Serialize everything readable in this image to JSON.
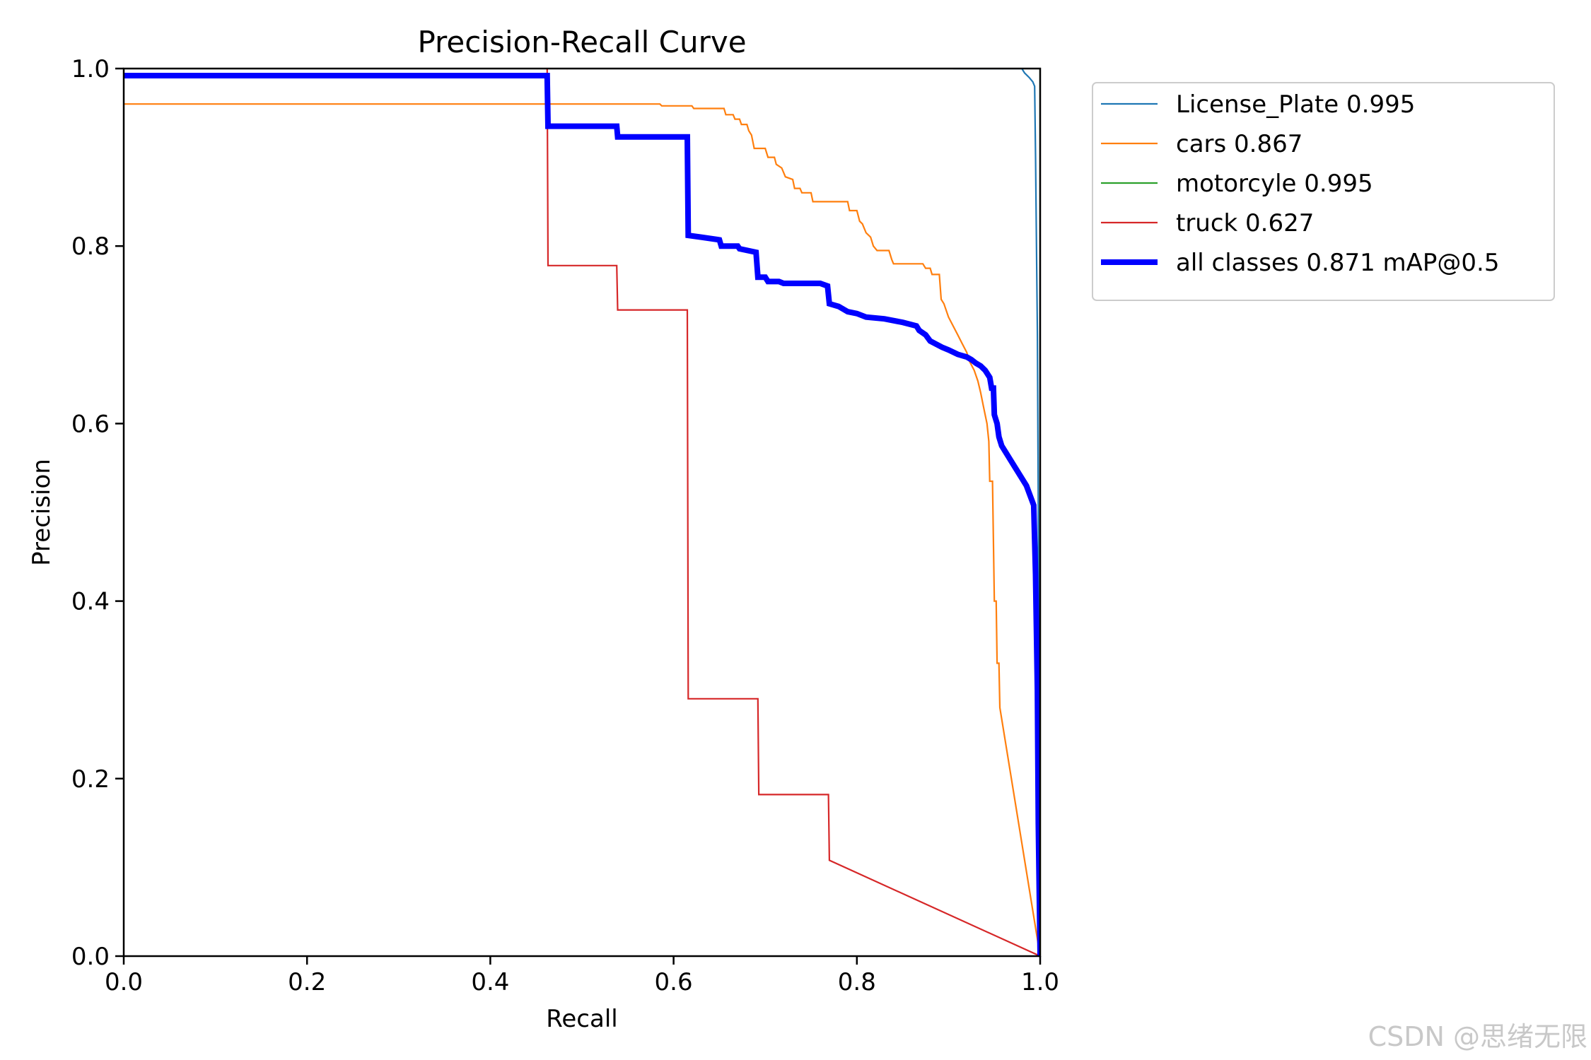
{
  "chart_data": {
    "type": "line",
    "title": "Precision-Recall Curve",
    "xlabel": "Recall",
    "ylabel": "Precision",
    "xlim": [
      0.0,
      1.0
    ],
    "ylim": [
      0.0,
      1.0
    ],
    "xticks": [
      "0.0",
      "0.2",
      "0.4",
      "0.6",
      "0.8",
      "1.0"
    ],
    "yticks": [
      "0.0",
      "0.2",
      "0.4",
      "0.6",
      "0.8",
      "1.0"
    ],
    "legend_position": "outside-top-right",
    "series": [
      {
        "name": "License_Plate",
        "label": "License_Plate 0.995",
        "color": "#1f77b4",
        "width": "thin",
        "points": [
          [
            0.905,
            1.0
          ],
          [
            0.98,
            1.0
          ],
          [
            0.983,
            0.995
          ],
          [
            0.988,
            0.99
          ],
          [
            0.992,
            0.985
          ],
          [
            0.994,
            0.98
          ],
          [
            0.995,
            0.9
          ],
          [
            0.997,
            0.7
          ],
          [
            0.998,
            0.5
          ],
          [
            1.0,
            0.0
          ]
        ]
      },
      {
        "name": "cars",
        "label": "cars 0.867",
        "color": "#ff7f0e",
        "width": "thin",
        "points": [
          [
            0.0,
            0.96
          ],
          [
            0.585,
            0.96
          ],
          [
            0.587,
            0.958
          ],
          [
            0.62,
            0.958
          ],
          [
            0.622,
            0.955
          ],
          [
            0.655,
            0.955
          ],
          [
            0.657,
            0.948
          ],
          [
            0.665,
            0.948
          ],
          [
            0.667,
            0.943
          ],
          [
            0.672,
            0.943
          ],
          [
            0.674,
            0.937
          ],
          [
            0.68,
            0.937
          ],
          [
            0.682,
            0.93
          ],
          [
            0.685,
            0.925
          ],
          [
            0.688,
            0.91
          ],
          [
            0.7,
            0.91
          ],
          [
            0.703,
            0.9
          ],
          [
            0.71,
            0.9
          ],
          [
            0.712,
            0.892
          ],
          [
            0.718,
            0.888
          ],
          [
            0.722,
            0.878
          ],
          [
            0.73,
            0.875
          ],
          [
            0.732,
            0.865
          ],
          [
            0.738,
            0.865
          ],
          [
            0.74,
            0.86
          ],
          [
            0.75,
            0.86
          ],
          [
            0.752,
            0.85
          ],
          [
            0.79,
            0.85
          ],
          [
            0.792,
            0.84
          ],
          [
            0.8,
            0.84
          ],
          [
            0.803,
            0.828
          ],
          [
            0.806,
            0.825
          ],
          [
            0.81,
            0.815
          ],
          [
            0.815,
            0.81
          ],
          [
            0.818,
            0.8
          ],
          [
            0.822,
            0.795
          ],
          [
            0.835,
            0.795
          ],
          [
            0.838,
            0.785
          ],
          [
            0.84,
            0.78
          ],
          [
            0.872,
            0.78
          ],
          [
            0.875,
            0.775
          ],
          [
            0.88,
            0.775
          ],
          [
            0.882,
            0.768
          ],
          [
            0.89,
            0.768
          ],
          [
            0.892,
            0.74
          ],
          [
            0.895,
            0.735
          ],
          [
            0.9,
            0.72
          ],
          [
            0.905,
            0.71
          ],
          [
            0.91,
            0.7
          ],
          [
            0.915,
            0.69
          ],
          [
            0.92,
            0.68
          ],
          [
            0.922,
            0.672
          ],
          [
            0.928,
            0.66
          ],
          [
            0.932,
            0.648
          ],
          [
            0.935,
            0.635
          ],
          [
            0.938,
            0.62
          ],
          [
            0.942,
            0.6
          ],
          [
            0.944,
            0.58
          ],
          [
            0.945,
            0.535
          ],
          [
            0.948,
            0.535
          ],
          [
            0.95,
            0.4
          ],
          [
            0.952,
            0.4
          ],
          [
            0.953,
            0.33
          ],
          [
            0.955,
            0.33
          ],
          [
            0.956,
            0.28
          ],
          [
            1.0,
            0.0
          ]
        ]
      },
      {
        "name": "motorcyle",
        "label": "motorcyle 0.995",
        "color": "#2ca02c",
        "width": "thin",
        "points": [
          [
            1.0,
            1.0
          ],
          [
            1.0,
            0.0
          ]
        ]
      },
      {
        "name": "truck",
        "label": "truck 0.627",
        "color": "#d62728",
        "width": "thin",
        "points": [
          [
            0.462,
            1.0
          ],
          [
            0.463,
            0.778
          ],
          [
            0.538,
            0.778
          ],
          [
            0.539,
            0.728
          ],
          [
            0.615,
            0.728
          ],
          [
            0.616,
            0.29
          ],
          [
            0.692,
            0.29
          ],
          [
            0.693,
            0.182
          ],
          [
            0.769,
            0.182
          ],
          [
            0.77,
            0.108
          ],
          [
            1.0,
            0.0
          ]
        ]
      },
      {
        "name": "all classes",
        "label": "all classes 0.871 mAP@0.5",
        "color": "#0000ff",
        "width": "thick",
        "points": [
          [
            0.0,
            0.992
          ],
          [
            0.462,
            0.992
          ],
          [
            0.463,
            0.935
          ],
          [
            0.538,
            0.935
          ],
          [
            0.539,
            0.923
          ],
          [
            0.615,
            0.923
          ],
          [
            0.616,
            0.812
          ],
          [
            0.63,
            0.81
          ],
          [
            0.65,
            0.807
          ],
          [
            0.652,
            0.8
          ],
          [
            0.67,
            0.8
          ],
          [
            0.672,
            0.797
          ],
          [
            0.69,
            0.793
          ],
          [
            0.692,
            0.765
          ],
          [
            0.7,
            0.765
          ],
          [
            0.703,
            0.76
          ],
          [
            0.715,
            0.76
          ],
          [
            0.72,
            0.758
          ],
          [
            0.76,
            0.758
          ],
          [
            0.768,
            0.755
          ],
          [
            0.77,
            0.735
          ],
          [
            0.78,
            0.732
          ],
          [
            0.79,
            0.726
          ],
          [
            0.8,
            0.724
          ],
          [
            0.81,
            0.72
          ],
          [
            0.83,
            0.718
          ],
          [
            0.85,
            0.714
          ],
          [
            0.865,
            0.71
          ],
          [
            0.868,
            0.705
          ],
          [
            0.875,
            0.7
          ],
          [
            0.88,
            0.693
          ],
          [
            0.893,
            0.686
          ],
          [
            0.9,
            0.683
          ],
          [
            0.91,
            0.678
          ],
          [
            0.92,
            0.675
          ],
          [
            0.925,
            0.672
          ],
          [
            0.93,
            0.668
          ],
          [
            0.935,
            0.665
          ],
          [
            0.94,
            0.66
          ],
          [
            0.945,
            0.652
          ],
          [
            0.947,
            0.64
          ],
          [
            0.949,
            0.64
          ],
          [
            0.95,
            0.61
          ],
          [
            0.953,
            0.6
          ],
          [
            0.955,
            0.585
          ],
          [
            0.958,
            0.575
          ],
          [
            0.97,
            0.555
          ],
          [
            0.985,
            0.53
          ],
          [
            0.993,
            0.508
          ],
          [
            0.995,
            0.43
          ],
          [
            0.997,
            0.3
          ],
          [
            0.998,
            0.15
          ],
          [
            1.0,
            0.0
          ]
        ]
      }
    ]
  },
  "watermark": "CSDN @思绪无限"
}
